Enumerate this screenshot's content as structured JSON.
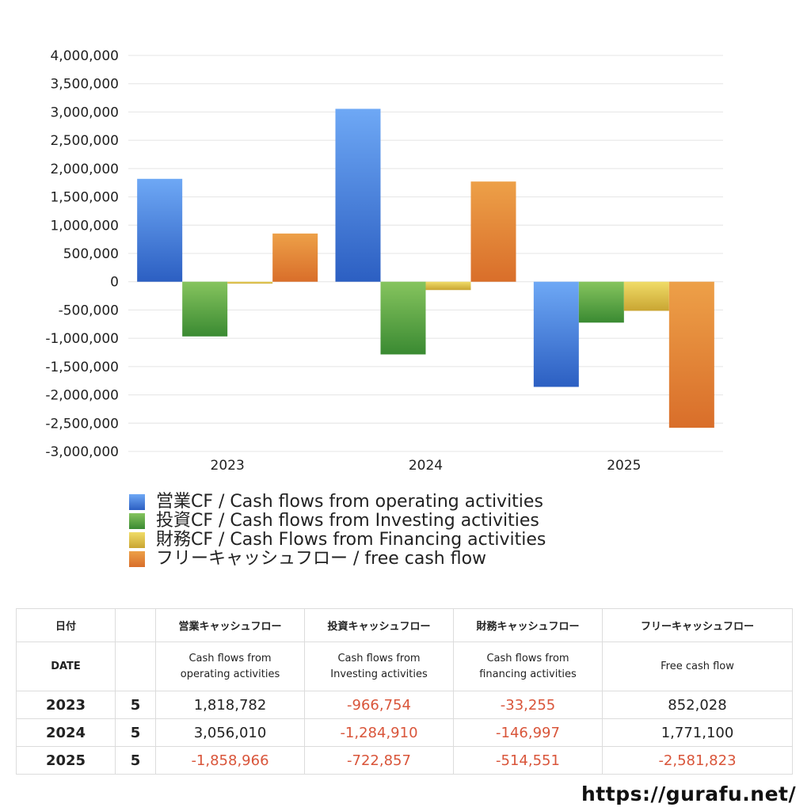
{
  "chart_data": {
    "type": "bar",
    "categories": [
      "2023",
      "2024",
      "2025"
    ],
    "series": [
      {
        "name": "営業CF / Cash flows from operating activities",
        "values": [
          1818782,
          3056010,
          -1858966
        ]
      },
      {
        "name": "投資CF / Cash flows from Investing activities",
        "values": [
          -966754,
          -1284910,
          -722857
        ]
      },
      {
        "name": "財務CF / Cash Flows from Financing activities",
        "values": [
          -33255,
          -146997,
          -514551
        ]
      },
      {
        "name": "フリーキャッシュフロー / free cash flow",
        "values": [
          852028,
          1771100,
          -2581823
        ]
      }
    ],
    "ylim": [
      -3000000,
      4000000
    ],
    "yticks": [
      "4,000,000",
      "3,500,000",
      "3,000,000",
      "2,500,000",
      "2,000,000",
      "1,500,000",
      "1,000,000",
      "500,000",
      "0",
      "-500,000",
      "-1,000,000",
      "-1,500,000",
      "-2,000,000",
      "-2,500,000",
      "-3,000,000"
    ],
    "grid": true,
    "legend_position": "bottom",
    "colors": {
      "operating": [
        "#6ea8f5",
        "#2c5fc2"
      ],
      "investing": [
        "#86c45e",
        "#3a8a32"
      ],
      "financing": [
        "#f0dc68",
        "#c9a532"
      ],
      "free": [
        "#eda048",
        "#d96e2a"
      ]
    }
  },
  "table": {
    "headers_ja": {
      "date": "日付",
      "operating": "営業キャッシュフロー",
      "investing": "投資キャッシュフロー",
      "financing": "財務キャッシュフロー",
      "free": "フリーキャッシュフロー"
    },
    "headers_en": {
      "date": "DATE",
      "operating_1": "Cash flows from",
      "operating_2": "operating activities",
      "investing_1": "Cash flows from",
      "investing_2": "Investing activities",
      "financing_1": "Cash flows from",
      "financing_2": "financing activities",
      "free": "Free cash flow"
    },
    "rows": [
      {
        "year": "2023",
        "month": "5",
        "operating": "1,818,782",
        "investing": "-966,754",
        "financing": "-33,255",
        "free": "852,028"
      },
      {
        "year": "2024",
        "month": "5",
        "operating": "3,056,010",
        "investing": "-1,284,910",
        "financing": "-146,997",
        "free": "1,771,100"
      },
      {
        "year": "2025",
        "month": "5",
        "operating": "-1,858,966",
        "investing": "-722,857",
        "financing": "-514,551",
        "free": "-2,581,823"
      }
    ]
  },
  "site_url": "https://gurafu.net/"
}
